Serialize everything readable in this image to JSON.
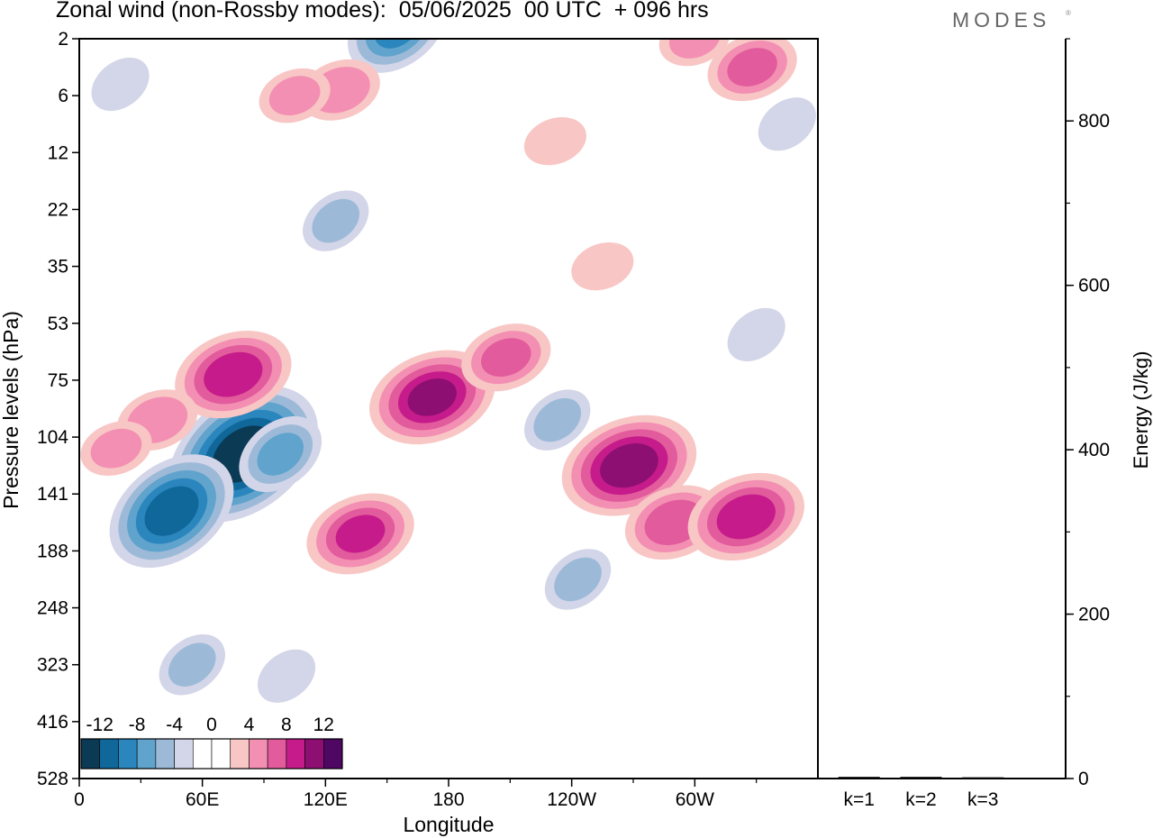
{
  "header": {
    "title": "Zonal wind (non-Rossby modes):  05/06/2025  00 UTC  + 096 hrs",
    "logo": "MODES",
    "logo_mark": "®"
  },
  "chart_data": [
    {
      "type": "heatmap",
      "title": "Zonal wind (non-Rossby modes):  05/06/2025  00 UTC  + 096 hrs",
      "xlabel": "Longitude",
      "ylabel": "Pressure levels (hPa)",
      "x_ticks": [
        "0",
        "60E",
        "120E",
        "180",
        "120W",
        "60W"
      ],
      "x_tick_values": [
        0,
        60,
        120,
        180,
        240,
        300
      ],
      "xlim": [
        0,
        360
      ],
      "y_ticks": [
        "2",
        "6",
        "12",
        "22",
        "35",
        "53",
        "75",
        "104",
        "141",
        "188",
        "248",
        "323",
        "416",
        "528"
      ],
      "y_scale": "pressure levels (categorical, top = 2 hPa)",
      "colorbar": {
        "labels": [
          "-12",
          "-8",
          "-4",
          "0",
          "4",
          "8",
          "12"
        ],
        "levels": [
          -14,
          -12,
          -10,
          -8,
          -6,
          -4,
          -2,
          0,
          2,
          4,
          6,
          8,
          10,
          12,
          14
        ],
        "colors": [
          "#0b3a55",
          "#10679a",
          "#2a86bd",
          "#60a3cc",
          "#9cbad8",
          "#d3d5e8",
          "#ffffff",
          "#ffffff",
          "#f8c6c4",
          "#f38fb2",
          "#e25b9c",
          "#c61b8a",
          "#8e0f72",
          "#4e0763"
        ]
      },
      "anomalies": [
        {
          "lon": 80,
          "lev": 7.3,
          "value": -14
        },
        {
          "lon": 45,
          "lev": 8.3,
          "value": -11
        },
        {
          "lon": 98,
          "lev": 7.3,
          "value": -6
        },
        {
          "lon": 155,
          "lev": -0.2,
          "value": -8
        },
        {
          "lon": 125,
          "lev": 3.2,
          "value": -4
        },
        {
          "lon": 55,
          "lev": 11,
          "value": -4
        },
        {
          "lon": 75,
          "lev": 5.9,
          "value": 9
        },
        {
          "lon": 38,
          "lev": 6.7,
          "value": 5
        },
        {
          "lon": 18,
          "lev": 7.2,
          "value": 4
        },
        {
          "lon": 137,
          "lev": 8.7,
          "value": 8
        },
        {
          "lon": 172,
          "lev": 6.3,
          "value": 10
        },
        {
          "lon": 208,
          "lev": 5.6,
          "value": 6
        },
        {
          "lon": 268,
          "lev": 7.5,
          "value": 11
        },
        {
          "lon": 290,
          "lev": 8.5,
          "value": 7
        },
        {
          "lon": 325,
          "lev": 8.4,
          "value": 9
        },
        {
          "lon": 127,
          "lev": 0.9,
          "value": 5
        },
        {
          "lon": 105,
          "lev": 1.0,
          "value": 4
        },
        {
          "lon": 328,
          "lev": 0.5,
          "value": 6
        },
        {
          "lon": 300,
          "lev": 0,
          "value": 4
        },
        {
          "lon": 232,
          "lev": 1.8,
          "value": 3
        },
        {
          "lon": 255,
          "lev": 4.0,
          "value": 3
        },
        {
          "lon": 233,
          "lev": 6.7,
          "value": -4
        },
        {
          "lon": 243,
          "lev": 9.5,
          "value": -4
        },
        {
          "lon": 101,
          "lev": 11.2,
          "value": -3
        },
        {
          "lon": 20,
          "lev": 0.8,
          "value": -3
        },
        {
          "lon": 345,
          "lev": 1.5,
          "value": -3
        },
        {
          "lon": 330,
          "lev": 5.2,
          "value": -3
        }
      ]
    },
    {
      "type": "bar",
      "ylabel": "Energy (J/kg)",
      "categories": [
        "k=1",
        "k=2",
        "k=3"
      ],
      "values": [
        2,
        2,
        1.5
      ],
      "ylim": [
        0,
        900
      ],
      "y_ticks": [
        "0",
        "200",
        "400",
        "600",
        "800"
      ],
      "y_tick_values": [
        0,
        200,
        400,
        600,
        800
      ],
      "y_minor_step": 100
    }
  ]
}
